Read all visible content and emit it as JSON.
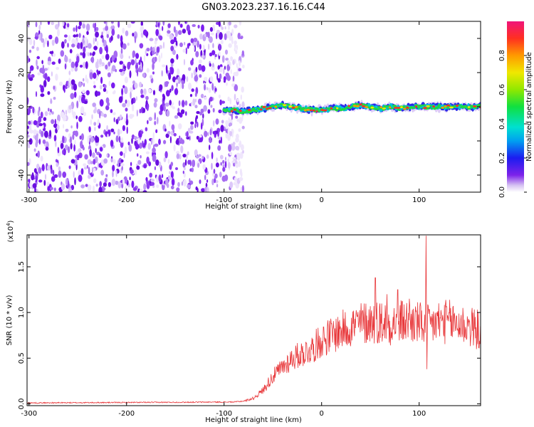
{
  "title": "GN03.2023.237.16.16.C44",
  "chart_data": [
    {
      "type": "heatmap",
      "xlabel": "Height of straight line (km)",
      "ylabel": "Frequency (Hz)",
      "xlim": [
        -302,
        163
      ],
      "ylim": [
        -50,
        50
      ],
      "xticks": [
        -300,
        -200,
        -100,
        0,
        100
      ],
      "yticks": [
        40,
        20,
        0,
        -20,
        -40
      ],
      "noise_region_x": [
        -302,
        -80
      ],
      "signal_track": {
        "x": [
          -100,
          -90,
          -80,
          -70,
          -60,
          -50,
          -40,
          -30,
          -20,
          -10,
          0,
          10,
          20,
          30,
          40,
          50,
          60,
          70,
          80,
          90,
          100,
          110,
          120,
          130,
          140,
          150,
          163
        ],
        "y": [
          -2,
          -2,
          -3,
          -2,
          -1,
          0,
          1,
          0,
          -1,
          -2,
          -2,
          -1,
          -1,
          0,
          1,
          0,
          -1,
          0,
          -1,
          0,
          0,
          0,
          0,
          0,
          0,
          0,
          0
        ]
      },
      "colorbar": {
        "label": "Normalized spectral amplitude",
        "range": [
          0,
          1
        ],
        "ticks": [
          "0.0",
          "0.2",
          "0.4",
          "0.6",
          "0.8"
        ],
        "tick_values": [
          0,
          0.2,
          0.4,
          0.6,
          0.8
        ]
      }
    },
    {
      "type": "line",
      "xlabel": "Height of straight line (km)",
      "ylabel": "SNR (10 * v/v)",
      "multiplier_label": "(x10",
      "multiplier_exp": "4",
      "multiplier_close": ")",
      "xlim": [
        -302,
        163
      ],
      "ylim": [
        -0.02,
        1.85
      ],
      "xticks": [
        -300,
        -200,
        -100,
        0,
        100
      ],
      "yticks": [
        0,
        0.5,
        1.0,
        1.5
      ],
      "ytick_labels": [
        "0.0",
        "0.5",
        "1.0",
        "1.5"
      ],
      "line_color": "#e8383b",
      "envelope": {
        "x": [
          -302,
          -90,
          -80,
          -70,
          -60,
          -50,
          -40,
          -30,
          -20,
          -10,
          0,
          10,
          20,
          30,
          40,
          50,
          60,
          70,
          80,
          90,
          100,
          110,
          120,
          130,
          140,
          150,
          163
        ],
        "y": [
          0.01,
          0.02,
          0.03,
          0.06,
          0.15,
          0.3,
          0.4,
          0.5,
          0.55,
          0.6,
          0.7,
          0.75,
          0.8,
          0.85,
          0.88,
          0.9,
          0.9,
          0.88,
          0.9,
          0.9,
          0.88,
          0.85,
          0.9,
          0.9,
          0.88,
          0.85,
          0.8
        ]
      },
      "spikes": [
        {
          "x": 55,
          "y": 1.38
        },
        {
          "x": 67,
          "y": 1.2
        },
        {
          "x": 78,
          "y": 1.25
        },
        {
          "x": 90,
          "y": 1.15
        },
        {
          "x": 107,
          "y": 1.84
        },
        {
          "x": 108,
          "y": 0.38
        }
      ]
    }
  ]
}
